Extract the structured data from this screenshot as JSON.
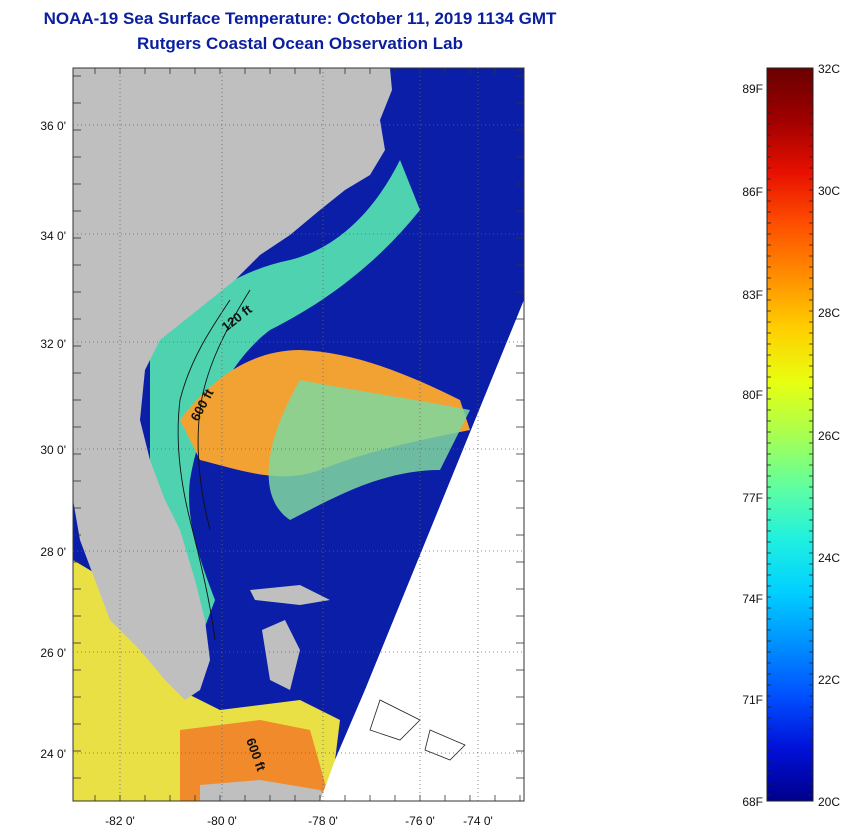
{
  "header": {
    "title": "NOAA-19 Sea Surface Temperature:  October 11, 2019 1134 GMT",
    "subtitle": "Rutgers Coastal Ocean Observation Lab"
  },
  "map": {
    "lat_labels": [
      "36 0'",
      "34 0'",
      "32 0'",
      "30 0'",
      "28 0'",
      "26 0'",
      "24 0'"
    ],
    "lon_labels": [
      "-82 0'",
      "-80 0'",
      "-78 0'",
      "-76 0'",
      "-74 0'"
    ],
    "isobath_labels": [
      "120 ft",
      "600 ft",
      "600 ft"
    ]
  },
  "colorbar": {
    "fahrenheit": [
      "89F",
      "86F",
      "83F",
      "80F",
      "77F",
      "74F",
      "71F",
      "68F"
    ],
    "celsius": [
      "32C",
      "30C",
      "28C",
      "26C",
      "24C",
      "22C",
      "20C"
    ],
    "colors": [
      "#00008b",
      "#0010d8",
      "#0050ff",
      "#0090ff",
      "#00d0ff",
      "#20f0e0",
      "#60ffa0",
      "#a8ff50",
      "#e8ff10",
      "#ffd000",
      "#ff9000",
      "#ff5000",
      "#e81000",
      "#a00000",
      "#6a0000"
    ]
  }
}
